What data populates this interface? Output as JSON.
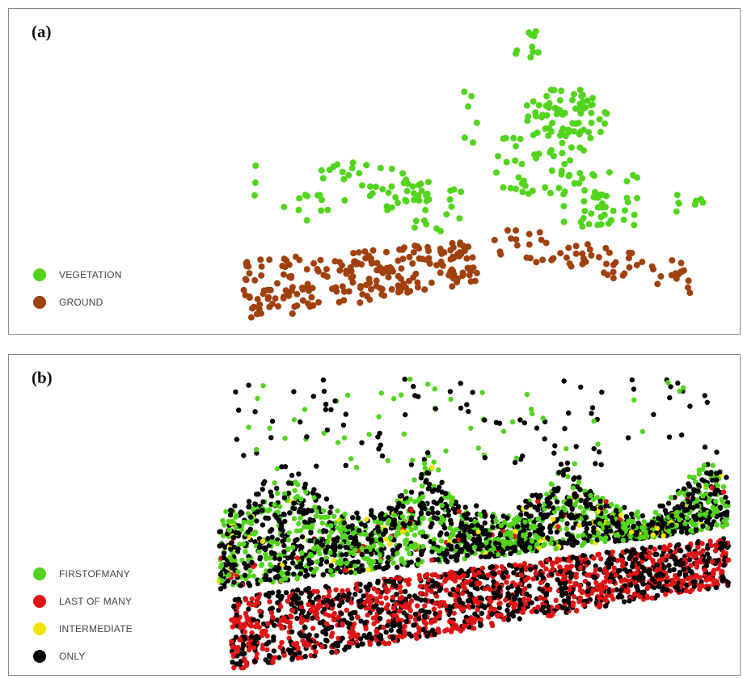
{
  "panel_a": {
    "label": "(a)",
    "legend": [
      {
        "label": "VEGETATION",
        "color": "#52d41c"
      },
      {
        "label": "GROUND",
        "color": "#a0410d"
      }
    ]
  },
  "panel_b": {
    "label": "(b)",
    "legend": [
      {
        "label": "FIRSTOFMANY",
        "color": "#52d41c"
      },
      {
        "label": "LAST OF MANY",
        "color": "#e01414"
      },
      {
        "label": "INTERMEDIATE",
        "color": "#f2e400"
      },
      {
        "label": "ONLY",
        "color": "#000000"
      }
    ]
  }
}
